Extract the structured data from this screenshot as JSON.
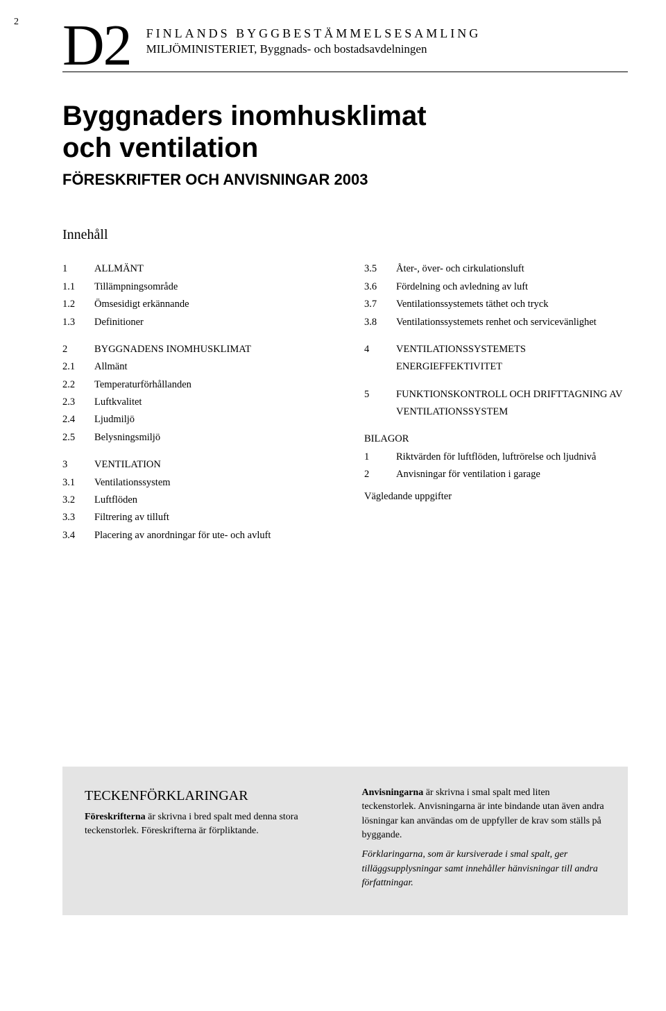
{
  "page_number": "2",
  "doc_code": "D2",
  "collection_title": "FINLANDS BYGGBESTÄMMELSESAMLING",
  "ministry": "MILJÖMINISTERIET, Byggnads- och bostadsavdelningen",
  "main_title_line1": "Byggnaders inomhusklimat",
  "main_title_line2": "och ventilation",
  "subtitle": "FÖRESKRIFTER OCH ANVISNINGAR 2003",
  "toc_heading": "Innehåll",
  "toc_left": [
    {
      "num": "1",
      "label": "ALLMÄNT",
      "section": true
    },
    {
      "num": "1.1",
      "label": "Tillämpningsområde"
    },
    {
      "num": "1.2",
      "label": "Ömsesidigt erkännande"
    },
    {
      "num": "1.3",
      "label": "Definitioner"
    },
    {
      "num": "2",
      "label": "BYGGNADENS INOMHUSKLIMAT",
      "section": true
    },
    {
      "num": "2.1",
      "label": "Allmänt"
    },
    {
      "num": "2.2",
      "label": "Temperaturförhållanden"
    },
    {
      "num": "2.3",
      "label": "Luftkvalitet"
    },
    {
      "num": "2.4",
      "label": "Ljudmiljö"
    },
    {
      "num": "2.5",
      "label": "Belysningsmiljö"
    },
    {
      "num": "3",
      "label": "VENTILATION",
      "section": true
    },
    {
      "num": "3.1",
      "label": "Ventilationssystem"
    },
    {
      "num": "3.2",
      "label": "Luftflöden"
    },
    {
      "num": "3.3",
      "label": "Filtrering av tilluft"
    },
    {
      "num": "3.4",
      "label": "Placering av anordningar för ute- och avluft"
    }
  ],
  "toc_right": [
    {
      "num": "3.5",
      "label": "Åter-, över- och cirkulationsluft"
    },
    {
      "num": "3.6",
      "label": "Fördelning och avledning av luft"
    },
    {
      "num": "3.7",
      "label": "Ventilationssystemets täthet och tryck"
    },
    {
      "num": "3.8",
      "label": "Ventilationssystemets renhet och servicevänlighet"
    },
    {
      "num": "4",
      "label": "VENTILATIONSSYSTEMETS ENERGIEFFEKTIVITET",
      "section": true
    },
    {
      "num": "5",
      "label": "FUNKTIONSKONTROLL OCH DRIFTTAGNING AV VENTILATIONSSYSTEM",
      "section": true
    }
  ],
  "bilagor_heading": "BILAGOR",
  "bilagor": [
    {
      "num": "1",
      "label": "Riktvärden för luftflöden, luftrörelse och ljudnivå"
    },
    {
      "num": "2",
      "label": "Anvisningar för ventilation i garage"
    }
  ],
  "vagledande": "Vägledande uppgifter",
  "legend": {
    "title": "TECKENFÖRKLARINGAR",
    "left_bold": "Föreskrifterna",
    "left_rest": " är skrivna i bred spalt med denna stora teckenstorlek. Föreskrifterna är förpliktande.",
    "right_p1_bold": "Anvisningarna",
    "right_p1_rest": " är skrivna i smal spalt med liten teckenstorlek. Anvisningarna är inte bindande utan även andra lösningar kan användas om de uppfyller de krav som ställs på byggande.",
    "right_p2": "Förklaringarna, som är kursiverade i smal spalt, ger tilläggsupplysningar samt innehåller hänvisningar till andra författningar."
  },
  "colors": {
    "background": "#ffffff",
    "text": "#000000",
    "legend_bg": "#e4e4e4"
  },
  "fonts": {
    "body": "Georgia, serif",
    "headings": "Arial, Helvetica, sans-serif",
    "doc_code_size": 84,
    "main_title_size": 40,
    "subtitle_size": 22,
    "body_size": 14.5,
    "legend_title_size": 20
  }
}
